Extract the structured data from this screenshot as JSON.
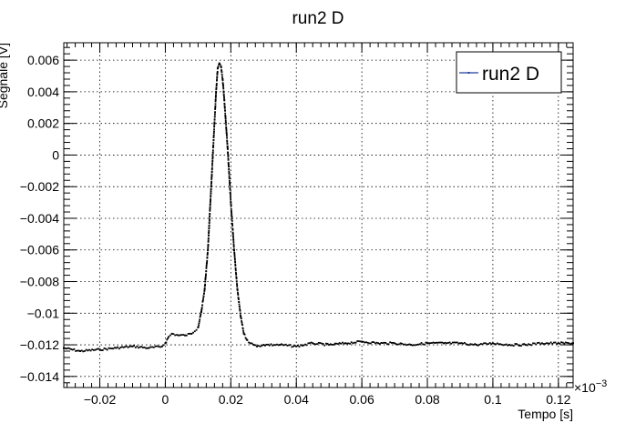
{
  "chart_data": {
    "type": "scatter",
    "title": "run2 D",
    "xlabel": "Tempo [s]",
    "ylabel": "Segnale [V]",
    "x_exponent_label": "×10",
    "x_exponent_power": "−3",
    "xlim": [
      -0.031,
      0.1245
    ],
    "ylim": [
      -0.0147,
      0.0071
    ],
    "grid": true,
    "legend_position": "top-right",
    "x_ticks": [
      {
        "value": -0.02,
        "label": "−0.02"
      },
      {
        "value": 0,
        "label": "0"
      },
      {
        "value": 0.02,
        "label": "0.02"
      },
      {
        "value": 0.04,
        "label": "0.04"
      },
      {
        "value": 0.06,
        "label": "0.06"
      },
      {
        "value": 0.08,
        "label": "0.08"
      },
      {
        "value": 0.1,
        "label": "0.1"
      },
      {
        "value": 0.12,
        "label": "0.12"
      }
    ],
    "y_ticks": [
      {
        "value": 0.006,
        "label": "0.006"
      },
      {
        "value": 0.004,
        "label": "0.004"
      },
      {
        "value": 0.002,
        "label": "0.002"
      },
      {
        "value": 0,
        "label": "0"
      },
      {
        "value": -0.002,
        "label": "−0.002"
      },
      {
        "value": -0.004,
        "label": "−0.004"
      },
      {
        "value": -0.006,
        "label": "−0.006"
      },
      {
        "value": -0.008,
        "label": "−0.008"
      },
      {
        "value": -0.01,
        "label": "−0.01"
      },
      {
        "value": -0.012,
        "label": "−0.012"
      },
      {
        "value": -0.014,
        "label": "−0.014"
      }
    ],
    "series": [
      {
        "name": "run2 D",
        "color": "#000000",
        "legend_line_color": "#1f3fa0",
        "x": [
          -0.031,
          -0.026,
          -0.02,
          -0.015,
          -0.01,
          -0.005,
          -0.001,
          0.0,
          0.001,
          0.002,
          0.004,
          0.006,
          0.008,
          0.01,
          0.011,
          0.012,
          0.013,
          0.014,
          0.015,
          0.0155,
          0.016,
          0.0165,
          0.017,
          0.0175,
          0.018,
          0.019,
          0.02,
          0.021,
          0.022,
          0.023,
          0.024,
          0.025,
          0.026,
          0.027,
          0.028,
          0.03,
          0.035,
          0.04,
          0.045,
          0.05,
          0.055,
          0.06,
          0.065,
          0.07,
          0.075,
          0.08,
          0.085,
          0.09,
          0.095,
          0.1,
          0.105,
          0.11,
          0.115,
          0.12,
          0.1245
        ],
        "y": [
          -0.0122,
          -0.0124,
          -0.0123,
          -0.0122,
          -0.0121,
          -0.0122,
          -0.0121,
          -0.0119,
          -0.0115,
          -0.0113,
          -0.0114,
          -0.0114,
          -0.0113,
          -0.0109,
          -0.0099,
          -0.0085,
          -0.006,
          -0.002,
          0.002,
          0.004,
          0.0055,
          0.0058,
          0.0056,
          0.0048,
          0.0035,
          0.0005,
          -0.003,
          -0.006,
          -0.0085,
          -0.0102,
          -0.0113,
          -0.0117,
          -0.0119,
          -0.012,
          -0.0121,
          -0.012,
          -0.012,
          -0.0121,
          -0.0119,
          -0.012,
          -0.0119,
          -0.0118,
          -0.0119,
          -0.0119,
          -0.012,
          -0.0119,
          -0.0119,
          -0.0119,
          -0.012,
          -0.0119,
          -0.012,
          -0.012,
          -0.0119,
          -0.0119,
          -0.0119
        ]
      }
    ]
  }
}
